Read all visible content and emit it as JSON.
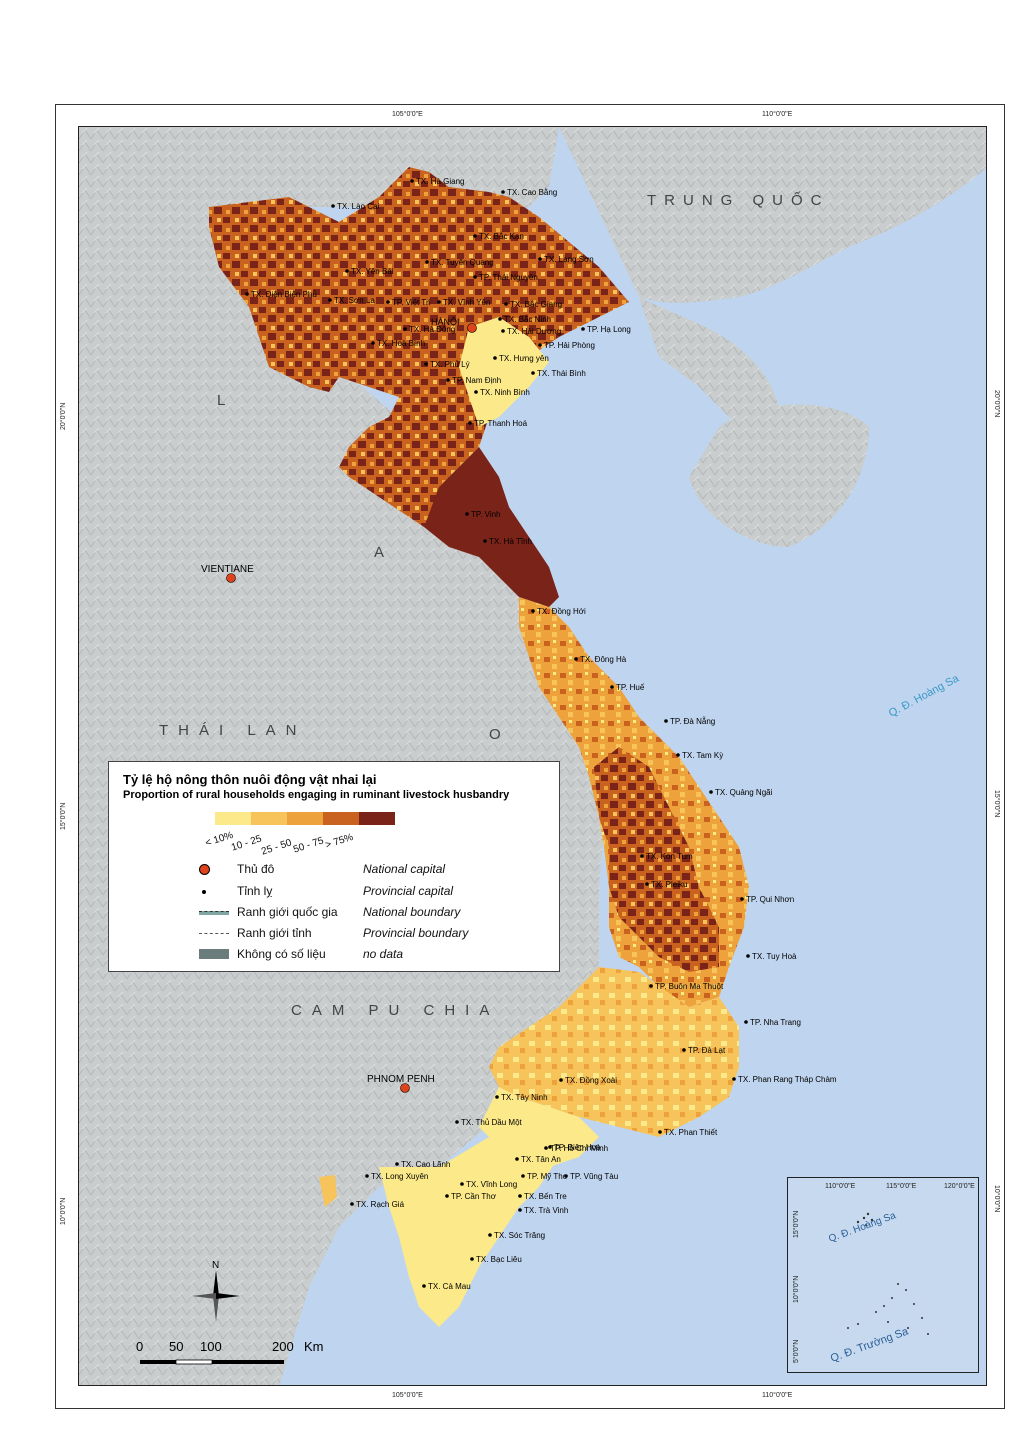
{
  "map": {
    "neighbors": {
      "china": "TRUNG QUỐC",
      "laos_letters": [
        "L",
        "A",
        "O"
      ],
      "thailand": "THÁI LAN",
      "cambodia": "CAM PU CHIA"
    },
    "islands": {
      "paracel": "Q. Đ. Hoàng Sa"
    },
    "foreign_capitals": [
      {
        "name": "VIENTIANE"
      },
      {
        "name": "PHNOM PENH"
      }
    ],
    "national_capital": "HÀNỘI",
    "cities": [
      "TX. Hà Giang",
      "TX. Cao Bằng",
      "TX. Lào Cai",
      "TX. Bắc Kạn",
      "TX. Tuyên Quang",
      "TX. Lạng Sơn",
      "TX. Yên Bái",
      "TP. Thái Nguyên",
      "TX. Điện Biên Phủ",
      "TX. Sơn La",
      "TP. Việt Trì",
      "TX. Vĩnh Yên",
      "TX. Bắc Giang",
      "TX. Bắc Ninh",
      "TX. Hà Đông",
      "TX. Hải Dương",
      "TP. Hạ Long",
      "TX. Hoà Bình",
      "TP. Hải Phòng",
      "TX. Hưng yên",
      "TX. Phủ Lý",
      "TX. Thái Bình",
      "TP. Nam Định",
      "TX. Ninh Bình",
      "TP. Thanh Hoá",
      "TP. Vinh",
      "TX. Hà Tĩnh",
      "TX. Đồng Hới",
      "TX. Đông Hà",
      "TP. Huế",
      "TP. Đà Nẵng",
      "TX. Tam Kỳ",
      "TX. Quảng Ngãi",
      "TX. Kon Tum",
      "TX. Pleiku",
      "TP. Qui Nhơn",
      "TX. Tuy Hoà",
      "TP. Buôn Ma Thuột",
      "TP. Nha Trang",
      "TP. Đà Lạt",
      "TX. Đồng Xoài",
      "TX. Phan Rang Tháp Chàm",
      "TX. Tây Ninh",
      "TX. Thủ Dầu Một",
      "TP. Biên Hoà",
      "TP. Hồ Chí Minh",
      "TX. Phan Thiết",
      "TX. Tân An",
      "TX. Cao Lãnh",
      "TP. Mỹ Tho",
      "TP. Vũng Tàu",
      "TX. Long Xuyên",
      "TX. Vĩnh Long",
      "TX. Bến Tre",
      "TX. Rạch Giá",
      "TP. Cần Thơ",
      "TX. Trà Vinh",
      "TX. Sóc Trăng",
      "TX. Bạc Liêu",
      "TX. Cà Mau"
    ],
    "graticule": {
      "top": [
        "105°0'0\"E",
        "110°0'0\"E"
      ],
      "bottom": [
        "105°0'0\"E",
        "110°0'0\"E"
      ],
      "left": [
        "20°0'0\"N",
        "15°0'0\"N",
        "10°0'0\"N"
      ],
      "right": [
        "20°0'0\"N",
        "15°0'0\"N",
        "10°0'0\"N"
      ]
    },
    "colors": {
      "sea": "#bfd4ee",
      "land_foreign": "#c9cdcd",
      "c1": "#fbe98a",
      "c2": "#f6c45a",
      "c3": "#eda23c",
      "c4": "#c9621e",
      "c5": "#7a2318"
    }
  },
  "legend": {
    "title_vn": "Tỷ lệ hộ nông thôn nuôi động vật nhai lại",
    "title_en": "Proportion of rural households engaging in ruminant livestock husbandry",
    "classes": [
      "< 10%",
      "10 - 25",
      "25 - 50",
      "50 - 75",
      "> 75%"
    ],
    "items": [
      {
        "vn": "Thủ đô",
        "en": "National capital"
      },
      {
        "vn": "Tỉnh lỵ",
        "en": "Provincial capital"
      },
      {
        "vn": "Ranh giới quốc gia",
        "en": "National boundary"
      },
      {
        "vn": "Ranh giới tỉnh",
        "en": "Provincial boundary"
      },
      {
        "vn": "Không có số liệu",
        "en": "no data"
      }
    ]
  },
  "inset": {
    "top_ticks": [
      "110°0'0\"E",
      "115°0'0\"E",
      "120°0'0\"E"
    ],
    "left_ticks": [
      "15°0'0\"N",
      "10°0'0\"N",
      "5°0'0\"N"
    ],
    "paracel": "Q. Đ. Hoàng Sa",
    "spratly": "Q. Đ. Trường Sa"
  },
  "north_arrow": "N",
  "scale_bar": {
    "labels": [
      "0",
      "50",
      "100",
      "200"
    ],
    "unit": "Km"
  }
}
